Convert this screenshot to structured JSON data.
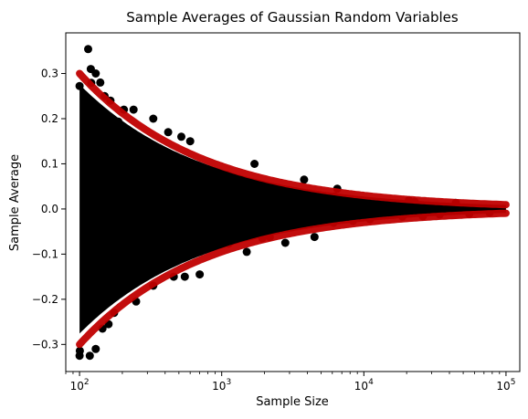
{
  "chart_data": {
    "type": "scatter",
    "title": "Sample Averages of Gaussian Random Variables",
    "xlabel": "Sample Size",
    "ylabel": "Sample Average",
    "xscale": "log",
    "xlim": [
      80,
      125000
    ],
    "ylim": [
      -0.36,
      0.39
    ],
    "grid": false,
    "x_ticks": [
      {
        "value": 100,
        "base": "10",
        "exp": "2"
      },
      {
        "value": 1000,
        "base": "10",
        "exp": "3"
      },
      {
        "value": 10000,
        "base": "10",
        "exp": "4"
      },
      {
        "value": 100000,
        "base": "10",
        "exp": "5"
      }
    ],
    "y_ticks": [
      {
        "value": -0.3,
        "label": "−0.3"
      },
      {
        "value": -0.2,
        "label": "−0.2"
      },
      {
        "value": -0.1,
        "label": "−0.1"
      },
      {
        "value": 0.0,
        "label": "0.0"
      },
      {
        "value": 0.1,
        "label": "0.1"
      },
      {
        "value": 0.2,
        "label": "0.2"
      },
      {
        "value": 0.3,
        "label": "0.3"
      }
    ],
    "series": [
      {
        "kind": "points",
        "color": "#000000",
        "description_of_spread": "sample averages from n=100 to n=100000",
        "spread_scale": 3.0,
        "x_range": [
          100,
          100000
        ],
        "outliers": [
          {
            "x": 115,
            "y": 0.354
          },
          {
            "x": 120,
            "y": 0.31
          },
          {
            "x": 130,
            "y": 0.3
          },
          {
            "x": 140,
            "y": 0.28
          },
          {
            "x": 150,
            "y": 0.25
          },
          {
            "x": 165,
            "y": 0.24
          },
          {
            "x": 205,
            "y": 0.22
          },
          {
            "x": 240,
            "y": 0.22
          },
          {
            "x": 330,
            "y": 0.2
          },
          {
            "x": 420,
            "y": 0.17
          },
          {
            "x": 520,
            "y": 0.16
          },
          {
            "x": 600,
            "y": 0.15
          },
          {
            "x": 1700,
            "y": 0.1
          },
          {
            "x": 3800,
            "y": 0.065
          },
          {
            "x": 6500,
            "y": 0.045
          },
          {
            "x": 100,
            "y": -0.325
          },
          {
            "x": 118,
            "y": -0.325
          },
          {
            "x": 130,
            "y": -0.31
          },
          {
            "x": 145,
            "y": -0.265
          },
          {
            "x": 160,
            "y": -0.255
          },
          {
            "x": 175,
            "y": -0.23
          },
          {
            "x": 250,
            "y": -0.205
          },
          {
            "x": 330,
            "y": -0.17
          },
          {
            "x": 460,
            "y": -0.15
          },
          {
            "x": 550,
            "y": -0.15
          },
          {
            "x": 700,
            "y": -0.145
          },
          {
            "x": 1500,
            "y": -0.095
          },
          {
            "x": 2800,
            "y": -0.075
          },
          {
            "x": 4500,
            "y": -0.062
          }
        ]
      },
      {
        "kind": "envelope",
        "color": "#c00000",
        "formula": "±3/sqrt(n)",
        "coefficient": 3
      }
    ]
  }
}
